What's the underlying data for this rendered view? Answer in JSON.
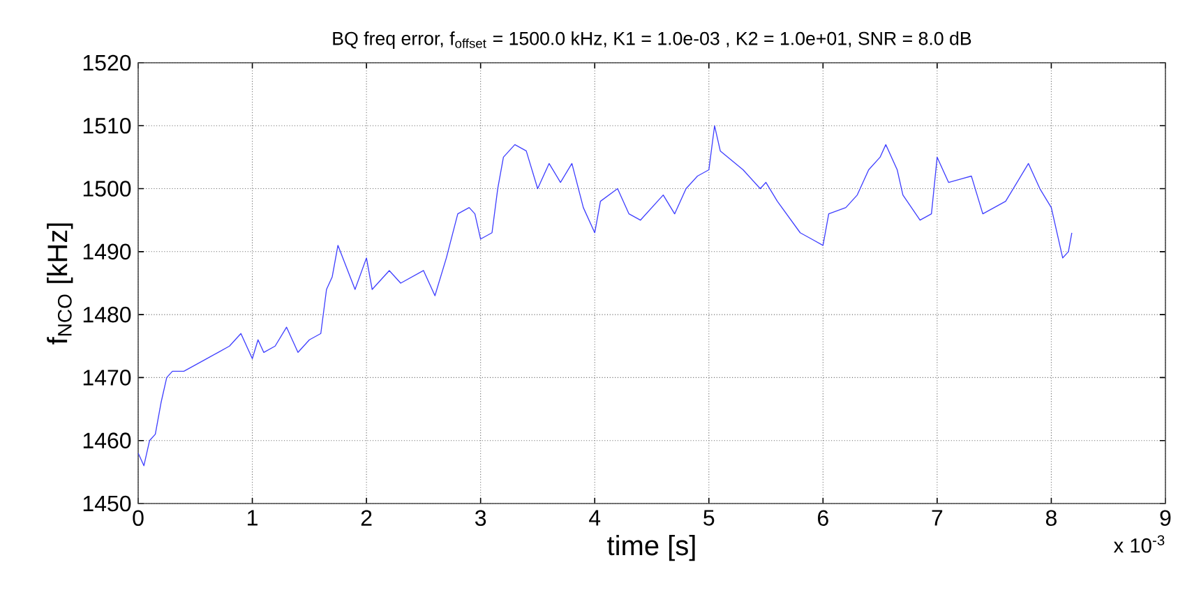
{
  "chart_data": {
    "type": "line",
    "title": "BQ freq error, f$_{offset}$ = 1500.0 kHz, K1 = 1.0e-03 , K2 = 1.0e+01, SNR = 8.0 dB",
    "xlabel": "time [s]",
    "ylabel": "f$_{NCO}$ [kHz]",
    "annotations": [
      "x 10$^{-3}$"
    ],
    "x": [
      0,
      0.05,
      0.1,
      0.15,
      0.2,
      0.25,
      0.3,
      0.4,
      0.5,
      0.6,
      0.7,
      0.8,
      0.9,
      1.0,
      1.05,
      1.1,
      1.2,
      1.3,
      1.4,
      1.5,
      1.6,
      1.65,
      1.7,
      1.75,
      1.9,
      2.0,
      2.05,
      2.2,
      2.3,
      2.5,
      2.6,
      2.7,
      2.8,
      2.9,
      2.95,
      3.0,
      3.1,
      3.15,
      3.2,
      3.3,
      3.4,
      3.5,
      3.6,
      3.7,
      3.8,
      3.9,
      4.0,
      4.05,
      4.2,
      4.3,
      4.4,
      4.6,
      4.7,
      4.8,
      4.9,
      5.0,
      5.05,
      5.1,
      5.3,
      5.45,
      5.5,
      5.6,
      5.8,
      5.9,
      6.0,
      6.05,
      6.2,
      6.3,
      6.4,
      6.5,
      6.55,
      6.65,
      6.7,
      6.85,
      6.95,
      7.0,
      7.1,
      7.3,
      7.4,
      7.6,
      7.8,
      7.9,
      8.0,
      8.05,
      8.1,
      8.15,
      8.18
    ],
    "values": [
      1458,
      1456,
      1460,
      1461,
      1466,
      1470,
      1471,
      1471,
      1472,
      1473,
      1474,
      1475,
      1477,
      1473,
      1476,
      1474,
      1475,
      1478,
      1474,
      1476,
      1477,
      1484,
      1486,
      1491,
      1484,
      1489,
      1484,
      1487,
      1485,
      1487,
      1483,
      1489,
      1496,
      1497,
      1496,
      1492,
      1493,
      1500,
      1505,
      1507,
      1506,
      1500,
      1504,
      1501,
      1504,
      1497,
      1493,
      1498,
      1500,
      1496,
      1495,
      1499,
      1496,
      1500,
      1502,
      1503,
      1510,
      1506,
      1503,
      1500,
      1501,
      1498,
      1493,
      1492,
      1491,
      1496,
      1497,
      1499,
      1503,
      1505,
      1507,
      1503,
      1499,
      1495,
      1496,
      1505,
      1501,
      1502,
      1496,
      1498,
      1504,
      1500,
      1497,
      1493,
      1489,
      1490,
      1493
    ],
    "color": "#4040ff",
    "xlim": [
      0,
      9
    ],
    "xticks": [
      0,
      1,
      2,
      3,
      4,
      5,
      6,
      7,
      8,
      9
    ],
    "ylim": [
      1450,
      1520
    ],
    "yticks": [
      1450,
      1460,
      1470,
      1480,
      1490,
      1500,
      1510,
      1520
    ],
    "grid": true
  }
}
